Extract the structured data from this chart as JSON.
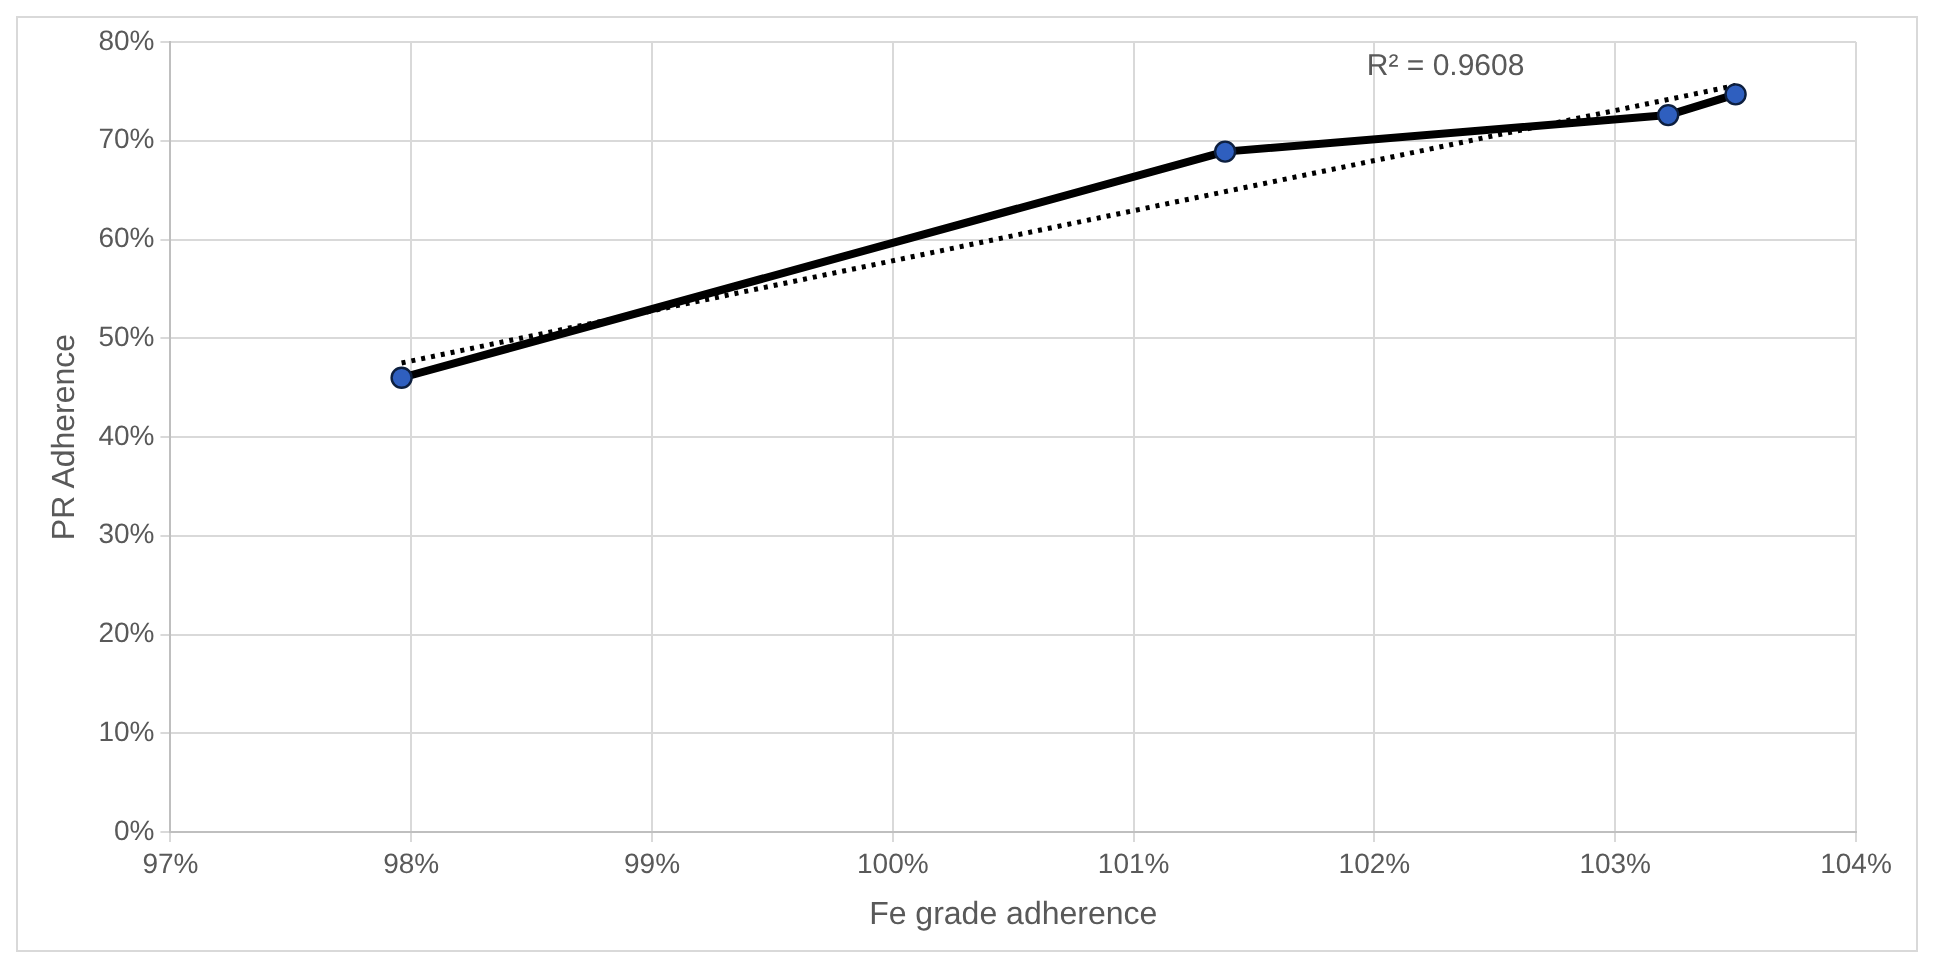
{
  "chart_data": {
    "type": "scatter",
    "xlabel": "Fe grade adherence",
    "ylabel": "PR Adherence",
    "xlim": [
      97,
      104
    ],
    "xticks": [
      {
        "value": 97,
        "label": "97%"
      },
      {
        "value": 98,
        "label": "98%"
      },
      {
        "value": 99,
        "label": "99%"
      },
      {
        "value": 100,
        "label": "100%"
      },
      {
        "value": 101,
        "label": "101%"
      },
      {
        "value": 102,
        "label": "102%"
      },
      {
        "value": 103,
        "label": "103%"
      },
      {
        "value": 104,
        "label": "104%"
      }
    ],
    "ylim": [
      0,
      80
    ],
    "yticks": [
      {
        "value": 0,
        "label": "0%"
      },
      {
        "value": 10,
        "label": "10%"
      },
      {
        "value": 20,
        "label": "20%"
      },
      {
        "value": 30,
        "label": "30%"
      },
      {
        "value": 40,
        "label": "40%"
      },
      {
        "value": 50,
        "label": "50%"
      },
      {
        "value": 60,
        "label": "60%"
      },
      {
        "value": 70,
        "label": "70%"
      },
      {
        "value": 80,
        "label": "80%"
      }
    ],
    "grid": true,
    "legend": false,
    "series": [
      {
        "type": "line",
        "color": "#000000",
        "colors": [
          "#2f5fbf",
          "#2f5fbf",
          "#2f5fbf",
          "#2f5fbf"
        ],
        "marker": "circle",
        "line_style": "solid",
        "x": [
          97.96,
          101.38,
          103.22,
          103.5
        ],
        "values": [
          46,
          68.9,
          72.6,
          74.7
        ]
      },
      {
        "type": "line",
        "color": "#000000",
        "marker": "none",
        "line_style": "dotted",
        "x": [
          97.96,
          103.5
        ],
        "values": [
          47.5,
          75.6
        ]
      }
    ],
    "annotations": [
      "R² = 0.9608"
    ]
  }
}
